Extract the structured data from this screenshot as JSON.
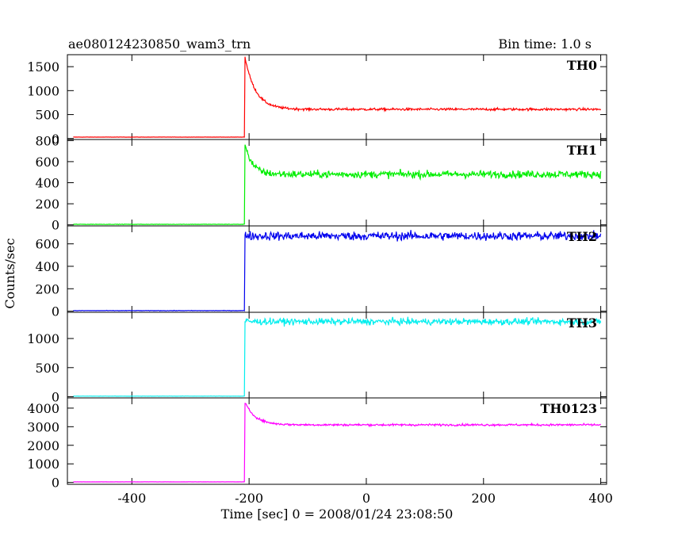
{
  "chart_data": {
    "type": "line",
    "title": "ae080124230850_wam3_trn",
    "subtitle": "Bin time: 1.0 s",
    "xlabel": "Time [sec] 0 = 2008/01/24 23:08:50",
    "ylabel": "Counts/sec",
    "xlim": [
      -510,
      410
    ],
    "x_ticks": [
      -400,
      -200,
      0,
      200,
      400
    ],
    "grid": false,
    "trigger_time": -207,
    "panels": [
      {
        "name": "TH0",
        "color": "#ff0000",
        "ylim": [
          -20,
          1750
        ],
        "y_ticks": [
          0,
          500,
          1000,
          1500
        ],
        "baseline": 30,
        "peak": 1700,
        "plateau": 610,
        "decay_time": 18,
        "noise": 18
      },
      {
        "name": "TH1",
        "color": "#00ee00",
        "ylim": [
          -10,
          810
        ],
        "y_ticks": [
          0,
          200,
          400,
          600,
          800
        ],
        "baseline": 5,
        "peak": 780,
        "plateau": 480,
        "decay_time": 12,
        "noise": 25
      },
      {
        "name": "TH2",
        "color": "#0000ee",
        "ylim": [
          -10,
          760
        ],
        "y_ticks": [
          0,
          200,
          400,
          600
        ],
        "baseline": 5,
        "peak": 690,
        "plateau": 670,
        "decay_time": 5,
        "noise": 28
      },
      {
        "name": "TH3",
        "color": "#00eeee",
        "ylim": [
          -20,
          1450
        ],
        "y_ticks": [
          0,
          500,
          1000
        ],
        "baseline": 10,
        "peak": 1300,
        "plateau": 1290,
        "decay_time": 5,
        "noise": 40
      },
      {
        "name": "TH0123",
        "color": "#ff00ff",
        "ylim": [
          -100,
          4550
        ],
        "y_ticks": [
          0,
          1000,
          2000,
          3000,
          4000
        ],
        "baseline": 30,
        "peak": 4300,
        "plateau": 3100,
        "decay_time": 18,
        "noise": 40
      }
    ]
  }
}
